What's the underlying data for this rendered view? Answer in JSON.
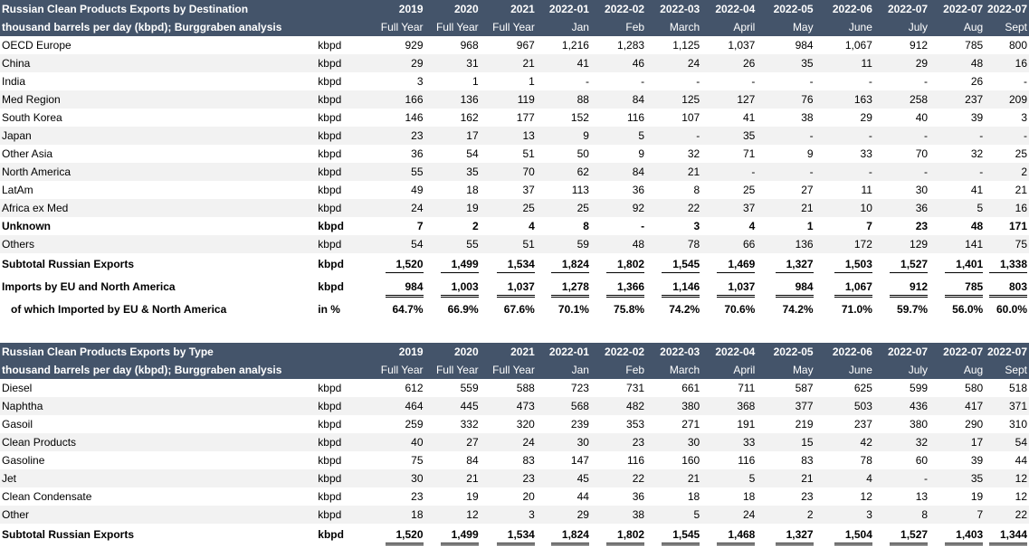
{
  "table1": {
    "title": "Russian Clean Products Exports by Destination",
    "subtitle": "thousand barrels per day (kbpd); Burggraben analysis",
    "col_headers_1": [
      "2019",
      "2020",
      "2021",
      "2022-01",
      "2022-02",
      "2022-03",
      "2022-04",
      "2022-05",
      "2022-06",
      "2022-07",
      "2022-07",
      "2022-07"
    ],
    "col_headers_2": [
      "Full Year",
      "Full Year",
      "Full Year",
      "Jan",
      "Feb",
      "March",
      "April",
      "May",
      "June",
      "July",
      "Aug",
      "Sept"
    ],
    "rows": [
      {
        "label": "OECD Europe",
        "unit": "kbpd",
        "values": [
          "929",
          "968",
          "967",
          "1,216",
          "1,283",
          "1,125",
          "1,037",
          "984",
          "1,067",
          "912",
          "785",
          "800"
        ]
      },
      {
        "label": "China",
        "unit": "kbpd",
        "values": [
          "29",
          "31",
          "21",
          "41",
          "46",
          "24",
          "26",
          "35",
          "11",
          "29",
          "48",
          "16"
        ]
      },
      {
        "label": "India",
        "unit": "kbpd",
        "values": [
          "3",
          "1",
          "1",
          "-",
          "-",
          "-",
          "-",
          "-",
          "-",
          "-",
          "26",
          "-"
        ]
      },
      {
        "label": "Med Region",
        "unit": "kbpd",
        "values": [
          "166",
          "136",
          "119",
          "88",
          "84",
          "125",
          "127",
          "76",
          "163",
          "258",
          "237",
          "209"
        ]
      },
      {
        "label": "South Korea",
        "unit": "kbpd",
        "values": [
          "146",
          "162",
          "177",
          "152",
          "116",
          "107",
          "41",
          "38",
          "29",
          "40",
          "39",
          "3"
        ]
      },
      {
        "label": "Japan",
        "unit": "kbpd",
        "values": [
          "23",
          "17",
          "13",
          "9",
          "5",
          "-",
          "35",
          "-",
          "-",
          "-",
          "-",
          "-"
        ]
      },
      {
        "label": "Other Asia",
        "unit": "kbpd",
        "values": [
          "36",
          "54",
          "51",
          "50",
          "9",
          "32",
          "71",
          "9",
          "33",
          "70",
          "32",
          "25"
        ]
      },
      {
        "label": "North America",
        "unit": "kbpd",
        "values": [
          "55",
          "35",
          "70",
          "62",
          "84",
          "21",
          "-",
          "-",
          "-",
          "-",
          "-",
          "2"
        ]
      },
      {
        "label": "LatAm",
        "unit": "kbpd",
        "values": [
          "49",
          "18",
          "37",
          "113",
          "36",
          "8",
          "25",
          "27",
          "11",
          "30",
          "41",
          "21"
        ]
      },
      {
        "label": "Africa ex Med",
        "unit": "kbpd",
        "values": [
          "24",
          "19",
          "25",
          "25",
          "92",
          "22",
          "37",
          "21",
          "10",
          "36",
          "5",
          "16"
        ]
      },
      {
        "label": "Unknown",
        "unit": "kbpd",
        "bold": true,
        "values": [
          "7",
          "2",
          "4",
          "8",
          "-",
          "3",
          "4",
          "1",
          "7",
          "23",
          "48",
          "171"
        ]
      },
      {
        "label": "Others",
        "unit": "kbpd",
        "values": [
          "54",
          "55",
          "51",
          "59",
          "48",
          "78",
          "66",
          "136",
          "172",
          "129",
          "141",
          "75"
        ]
      }
    ],
    "subtotal": {
      "label": "Subtotal Russian Exports",
      "unit": "kbpd",
      "values": [
        "1,520",
        "1,499",
        "1,534",
        "1,824",
        "1,802",
        "1,545",
        "1,469",
        "1,327",
        "1,503",
        "1,527",
        "1,401",
        "1,338"
      ]
    },
    "imports": {
      "label": "Imports by EU and North America",
      "unit": "kbpd",
      "values": [
        "984",
        "1,003",
        "1,037",
        "1,278",
        "1,366",
        "1,146",
        "1,037",
        "984",
        "1,067",
        "912",
        "785",
        "803"
      ]
    },
    "pct": {
      "label": "of which Imported by EU & North America",
      "unit": "in %",
      "values": [
        "64.7%",
        "66.9%",
        "67.6%",
        "70.1%",
        "75.8%",
        "74.2%",
        "70.6%",
        "74.2%",
        "71.0%",
        "59.7%",
        "56.0%",
        "60.0%"
      ]
    }
  },
  "table2": {
    "title": "Russian Clean Products Exports by Type",
    "subtitle": "thousand barrels per day (kbpd); Burggraben analysis",
    "col_headers_1": [
      "2019",
      "2020",
      "2021",
      "2022-01",
      "2022-02",
      "2022-03",
      "2022-04",
      "2022-05",
      "2022-06",
      "2022-07",
      "2022-07",
      "2022-07"
    ],
    "col_headers_2": [
      "Full Year",
      "Full Year",
      "Full Year",
      "Jan",
      "Feb",
      "March",
      "April",
      "May",
      "June",
      "July",
      "Aug",
      "Sept"
    ],
    "rows": [
      {
        "label": "Diesel",
        "unit": "kbpd",
        "values": [
          "612",
          "559",
          "588",
          "723",
          "731",
          "661",
          "711",
          "587",
          "625",
          "599",
          "580",
          "518"
        ]
      },
      {
        "label": "Naphtha",
        "unit": "kbpd",
        "values": [
          "464",
          "445",
          "473",
          "568",
          "482",
          "380",
          "368",
          "377",
          "503",
          "436",
          "417",
          "371"
        ]
      },
      {
        "label": "Gasoil",
        "unit": "kbpd",
        "values": [
          "259",
          "332",
          "320",
          "239",
          "353",
          "271",
          "191",
          "219",
          "237",
          "380",
          "290",
          "310"
        ]
      },
      {
        "label": "Clean Products",
        "unit": "kbpd",
        "values": [
          "40",
          "27",
          "24",
          "30",
          "23",
          "30",
          "33",
          "15",
          "42",
          "32",
          "17",
          "54"
        ]
      },
      {
        "label": "Gasoline",
        "unit": "kbpd",
        "values": [
          "75",
          "84",
          "83",
          "147",
          "116",
          "160",
          "116",
          "83",
          "78",
          "60",
          "39",
          "44"
        ]
      },
      {
        "label": "Jet",
        "unit": "kbpd",
        "values": [
          "30",
          "21",
          "23",
          "45",
          "22",
          "21",
          "5",
          "21",
          "4",
          "-",
          "35",
          "12"
        ]
      },
      {
        "label": "Clean Condensate",
        "unit": "kbpd",
        "values": [
          "23",
          "19",
          "20",
          "44",
          "36",
          "18",
          "18",
          "23",
          "12",
          "13",
          "19",
          "12"
        ]
      },
      {
        "label": "Other",
        "unit": "kbpd",
        "values": [
          "18",
          "12",
          "3",
          "29",
          "38",
          "5",
          "24",
          "2",
          "3",
          "8",
          "7",
          "22"
        ]
      }
    ],
    "subtotal": {
      "label": "Subtotal Russian Exports",
      "unit": "kbpd",
      "values": [
        "1,520",
        "1,499",
        "1,534",
        "1,824",
        "1,802",
        "1,545",
        "1,468",
        "1,327",
        "1,504",
        "1,527",
        "1,403",
        "1,344"
      ]
    }
  }
}
